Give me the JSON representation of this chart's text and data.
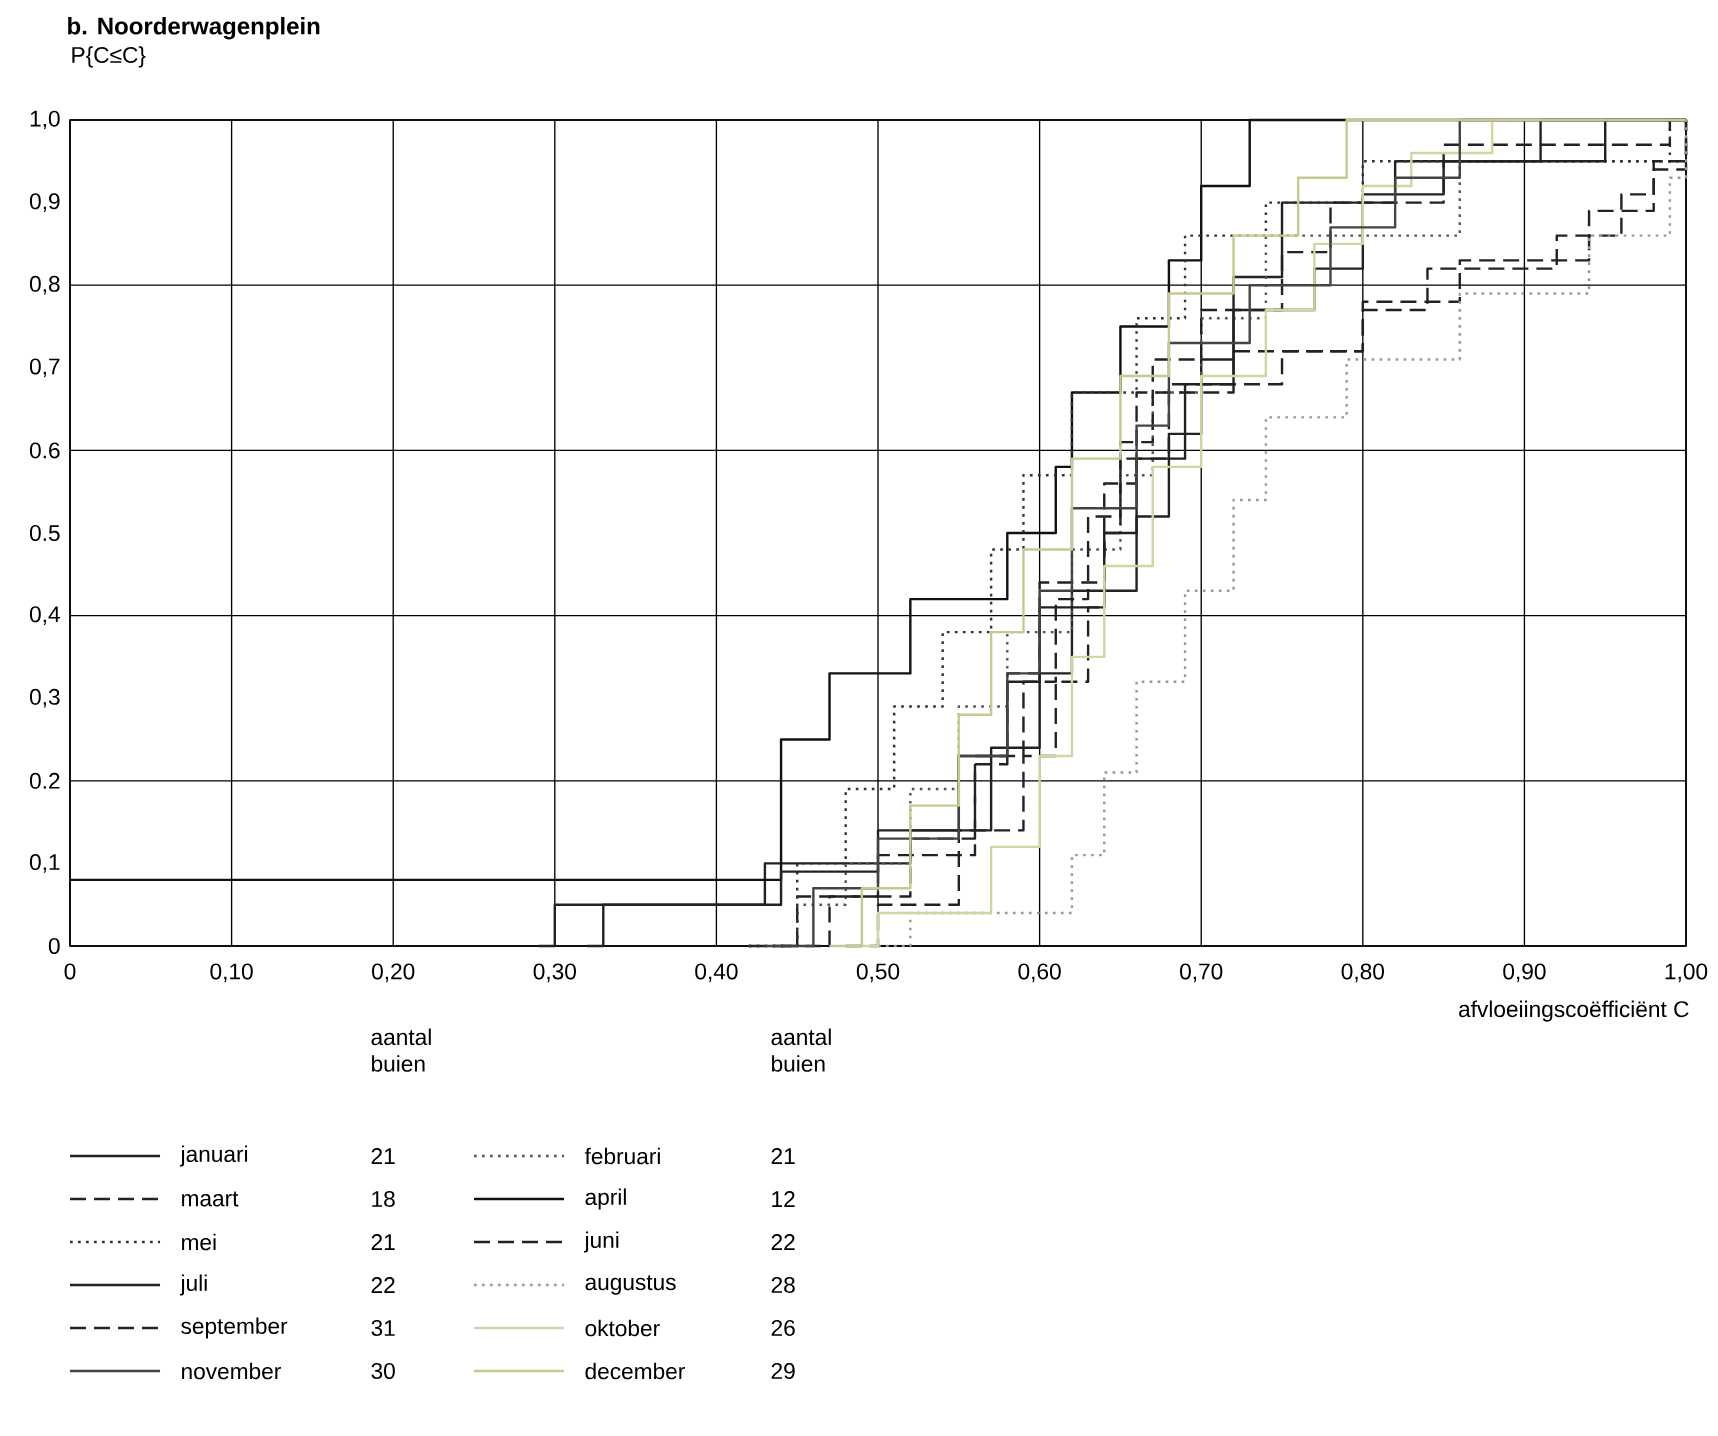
{
  "chart_data": {
    "type": "step",
    "title": "b. Noorderwagenplein",
    "xlabel": "afvloeiingscoëfficiënt C",
    "ylabel": "P{C≤C}",
    "legend_title": "aantal buien",
    "legend": "bottom",
    "grid": true,
    "xlim": [
      0,
      1
    ],
    "ylim": [
      0,
      1
    ],
    "xticks": [
      {
        "value": 0,
        "label": "0"
      },
      {
        "value": 0.1,
        "label": "0,10"
      },
      {
        "value": 0.2,
        "label": "0,20"
      },
      {
        "value": 0.3,
        "label": "0,30"
      },
      {
        "value": 0.4,
        "label": "0,40"
      },
      {
        "value": 0.5,
        "label": "0,50"
      },
      {
        "value": 0.6,
        "label": "0,60"
      },
      {
        "value": 0.7,
        "label": "0,70"
      },
      {
        "value": 0.8,
        "label": "0,80"
      },
      {
        "value": 0.9,
        "label": "0,90"
      },
      {
        "value": 1,
        "label": "1,00"
      }
    ],
    "yticks": [
      {
        "value": 0,
        "label": "0"
      },
      {
        "value": 0.1,
        "label": "0,1"
      },
      {
        "value": 0.2,
        "label": "0.2"
      },
      {
        "value": 0.3,
        "label": "0,3"
      },
      {
        "value": 0.4,
        "label": "0,4"
      },
      {
        "value": 0.5,
        "label": "0.5"
      },
      {
        "value": 0.6,
        "label": "0.6"
      },
      {
        "value": 0.7,
        "label": "0,7"
      },
      {
        "value": 0.8,
        "label": "0,8"
      },
      {
        "value": 0.9,
        "label": "0,9"
      },
      {
        "value": 1,
        "label": "1,0"
      }
    ],
    "annotations": [
      "21",
      "21",
      "18",
      "12",
      "21",
      "22",
      "22",
      "28",
      "31",
      "26",
      "30",
      "29"
    ],
    "series": [
      {
        "name": "januari",
        "color": "#222222",
        "line_style": "solid",
        "x": [
          0.29,
          0.3,
          0.43,
          0.52,
          0.57,
          0.6,
          0.62,
          0.66,
          0.68,
          0.7,
          0.72,
          0.75,
          0.82,
          0.91,
          1.0
        ],
        "values": [
          0,
          0.05,
          0.1,
          0.14,
          0.24,
          0.33,
          0.43,
          0.52,
          0.62,
          0.71,
          0.81,
          0.9,
          0.95,
          1.0,
          1.0
        ]
      },
      {
        "name": "februari",
        "color": "#555555",
        "line_style": "dotted",
        "x": [
          0.42,
          0.45,
          0.48,
          0.52,
          0.55,
          0.58,
          0.62,
          0.65,
          0.67,
          0.7,
          0.74,
          0.86,
          1.0
        ],
        "values": [
          0,
          0.05,
          0.1,
          0.19,
          0.29,
          0.38,
          0.48,
          0.57,
          0.67,
          0.76,
          0.86,
          0.95,
          1.0
        ]
      },
      {
        "name": "maart",
        "color": "#222222",
        "line_style": "dashed",
        "x": [
          0.42,
          0.45,
          0.5,
          0.56,
          0.58,
          0.6,
          0.64,
          0.66,
          0.72,
          0.8,
          0.86,
          0.94,
          0.98,
          1.0
        ],
        "values": [
          0,
          0.06,
          0.11,
          0.22,
          0.33,
          0.44,
          0.56,
          0.67,
          0.72,
          0.78,
          0.83,
          0.89,
          0.94,
          1.0
        ]
      },
      {
        "name": "april",
        "color": "#111111",
        "line_style": "solid",
        "x": [
          0,
          0.42,
          0.44,
          0.47,
          0.52,
          0.58,
          0.61,
          0.62,
          0.65,
          0.68,
          0.7,
          0.73,
          1.0
        ],
        "values": [
          0.08,
          0.08,
          0.25,
          0.33,
          0.42,
          0.5,
          0.58,
          0.67,
          0.75,
          0.83,
          0.92,
          1.0,
          1.0
        ]
      },
      {
        "name": "mei",
        "color": "#333333",
        "line_style": "dotted",
        "x": [
          0.42,
          0.45,
          0.48,
          0.51,
          0.54,
          0.57,
          0.59,
          0.62,
          0.66,
          0.69,
          0.74,
          0.8,
          0.99,
          1.0
        ],
        "values": [
          0,
          0.1,
          0.19,
          0.29,
          0.38,
          0.48,
          0.57,
          0.67,
          0.76,
          0.86,
          0.9,
          0.95,
          1.0,
          1.0
        ]
      },
      {
        "name": "juni",
        "color": "#222222",
        "line_style": "dashed",
        "x": [
          0.48,
          0.5,
          0.55,
          0.59,
          0.61,
          0.63,
          0.64,
          0.65,
          0.68,
          0.75,
          0.8,
          0.84,
          0.92,
          0.96,
          0.98,
          1.0
        ],
        "values": [
          0,
          0.05,
          0.14,
          0.23,
          0.32,
          0.41,
          0.5,
          0.59,
          0.68,
          0.72,
          0.77,
          0.82,
          0.86,
          0.91,
          0.95,
          1.0
        ]
      },
      {
        "name": "juli",
        "color": "#222222",
        "line_style": "solid",
        "x": [
          0.32,
          0.33,
          0.44,
          0.5,
          0.55,
          0.58,
          0.6,
          0.64,
          0.66,
          0.69,
          0.72,
          0.77,
          0.8,
          0.85,
          0.95,
          1.0
        ],
        "values": [
          0,
          0.05,
          0.09,
          0.14,
          0.23,
          0.32,
          0.41,
          0.5,
          0.59,
          0.68,
          0.77,
          0.82,
          0.91,
          0.95,
          1.0,
          1.0
        ]
      },
      {
        "name": "augustus",
        "color": "#999999",
        "line_style": "dotted",
        "x": [
          0.5,
          0.52,
          0.62,
          0.64,
          0.66,
          0.69,
          0.72,
          0.74,
          0.79,
          0.86,
          0.94,
          0.99,
          1.0
        ],
        "values": [
          0,
          0.04,
          0.11,
          0.21,
          0.32,
          0.43,
          0.54,
          0.64,
          0.71,
          0.79,
          0.86,
          0.93,
          1.0
        ]
      },
      {
        "name": "september",
        "color": "#222222",
        "line_style": "dashed",
        "x": [
          0.44,
          0.47,
          0.52,
          0.56,
          0.59,
          0.61,
          0.63,
          0.65,
          0.67,
          0.7,
          0.75,
          0.78,
          0.85,
          0.99,
          1.0
        ],
        "values": [
          0,
          0.06,
          0.13,
          0.23,
          0.32,
          0.42,
          0.52,
          0.61,
          0.71,
          0.77,
          0.84,
          0.9,
          0.97,
          1.0,
          1.0
        ]
      },
      {
        "name": "oktober",
        "color": "#d4d4a0",
        "line_style": "solid",
        "x": [
          0.49,
          0.5,
          0.57,
          0.6,
          0.62,
          0.64,
          0.67,
          0.7,
          0.74,
          0.77,
          0.8,
          0.83,
          0.88,
          1.0
        ],
        "values": [
          0,
          0.04,
          0.12,
          0.23,
          0.35,
          0.46,
          0.58,
          0.69,
          0.77,
          0.85,
          0.92,
          0.96,
          1.0,
          1.0
        ]
      },
      {
        "name": "november",
        "color": "#444444",
        "line_style": "solid",
        "x": [
          0.43,
          0.46,
          0.5,
          0.55,
          0.58,
          0.6,
          0.62,
          0.66,
          0.68,
          0.73,
          0.78,
          0.82,
          0.86,
          1.0
        ],
        "values": [
          0,
          0.07,
          0.13,
          0.23,
          0.33,
          0.43,
          0.53,
          0.63,
          0.73,
          0.8,
          0.87,
          0.93,
          1.0,
          1.0
        ]
      },
      {
        "name": "december",
        "color": "#c8c890",
        "line_style": "solid",
        "x": [
          0.47,
          0.49,
          0.52,
          0.55,
          0.57,
          0.59,
          0.62,
          0.65,
          0.68,
          0.72,
          0.76,
          0.79,
          1.0
        ],
        "values": [
          0,
          0.07,
          0.17,
          0.28,
          0.38,
          0.48,
          0.59,
          0.69,
          0.79,
          0.86,
          0.93,
          1.0,
          1.0
        ]
      }
    ]
  }
}
